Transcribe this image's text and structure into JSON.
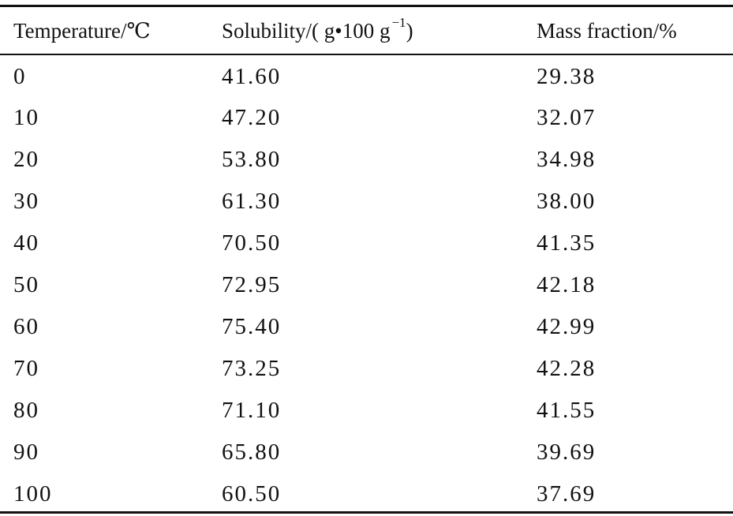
{
  "table": {
    "headers": [
      "Temperature/℃",
      "Solubility/( g•100 g",
      "Mass fraction/%"
    ],
    "header_solubility_superscript": "−1",
    "header_solubility_close": ")",
    "rows": [
      [
        "0",
        "41.60",
        "29.38"
      ],
      [
        "10",
        "47.20",
        "32.07"
      ],
      [
        "20",
        "53.80",
        "34.98"
      ],
      [
        "30",
        "61.30",
        "38.00"
      ],
      [
        "40",
        "70.50",
        "41.35"
      ],
      [
        "50",
        "72.95",
        "42.18"
      ],
      [
        "60",
        "75.40",
        "42.99"
      ],
      [
        "70",
        "73.25",
        "42.28"
      ],
      [
        "80",
        "71.10",
        "41.55"
      ],
      [
        "90",
        "65.80",
        "39.69"
      ],
      [
        "100",
        "60.50",
        "37.69"
      ]
    ]
  }
}
